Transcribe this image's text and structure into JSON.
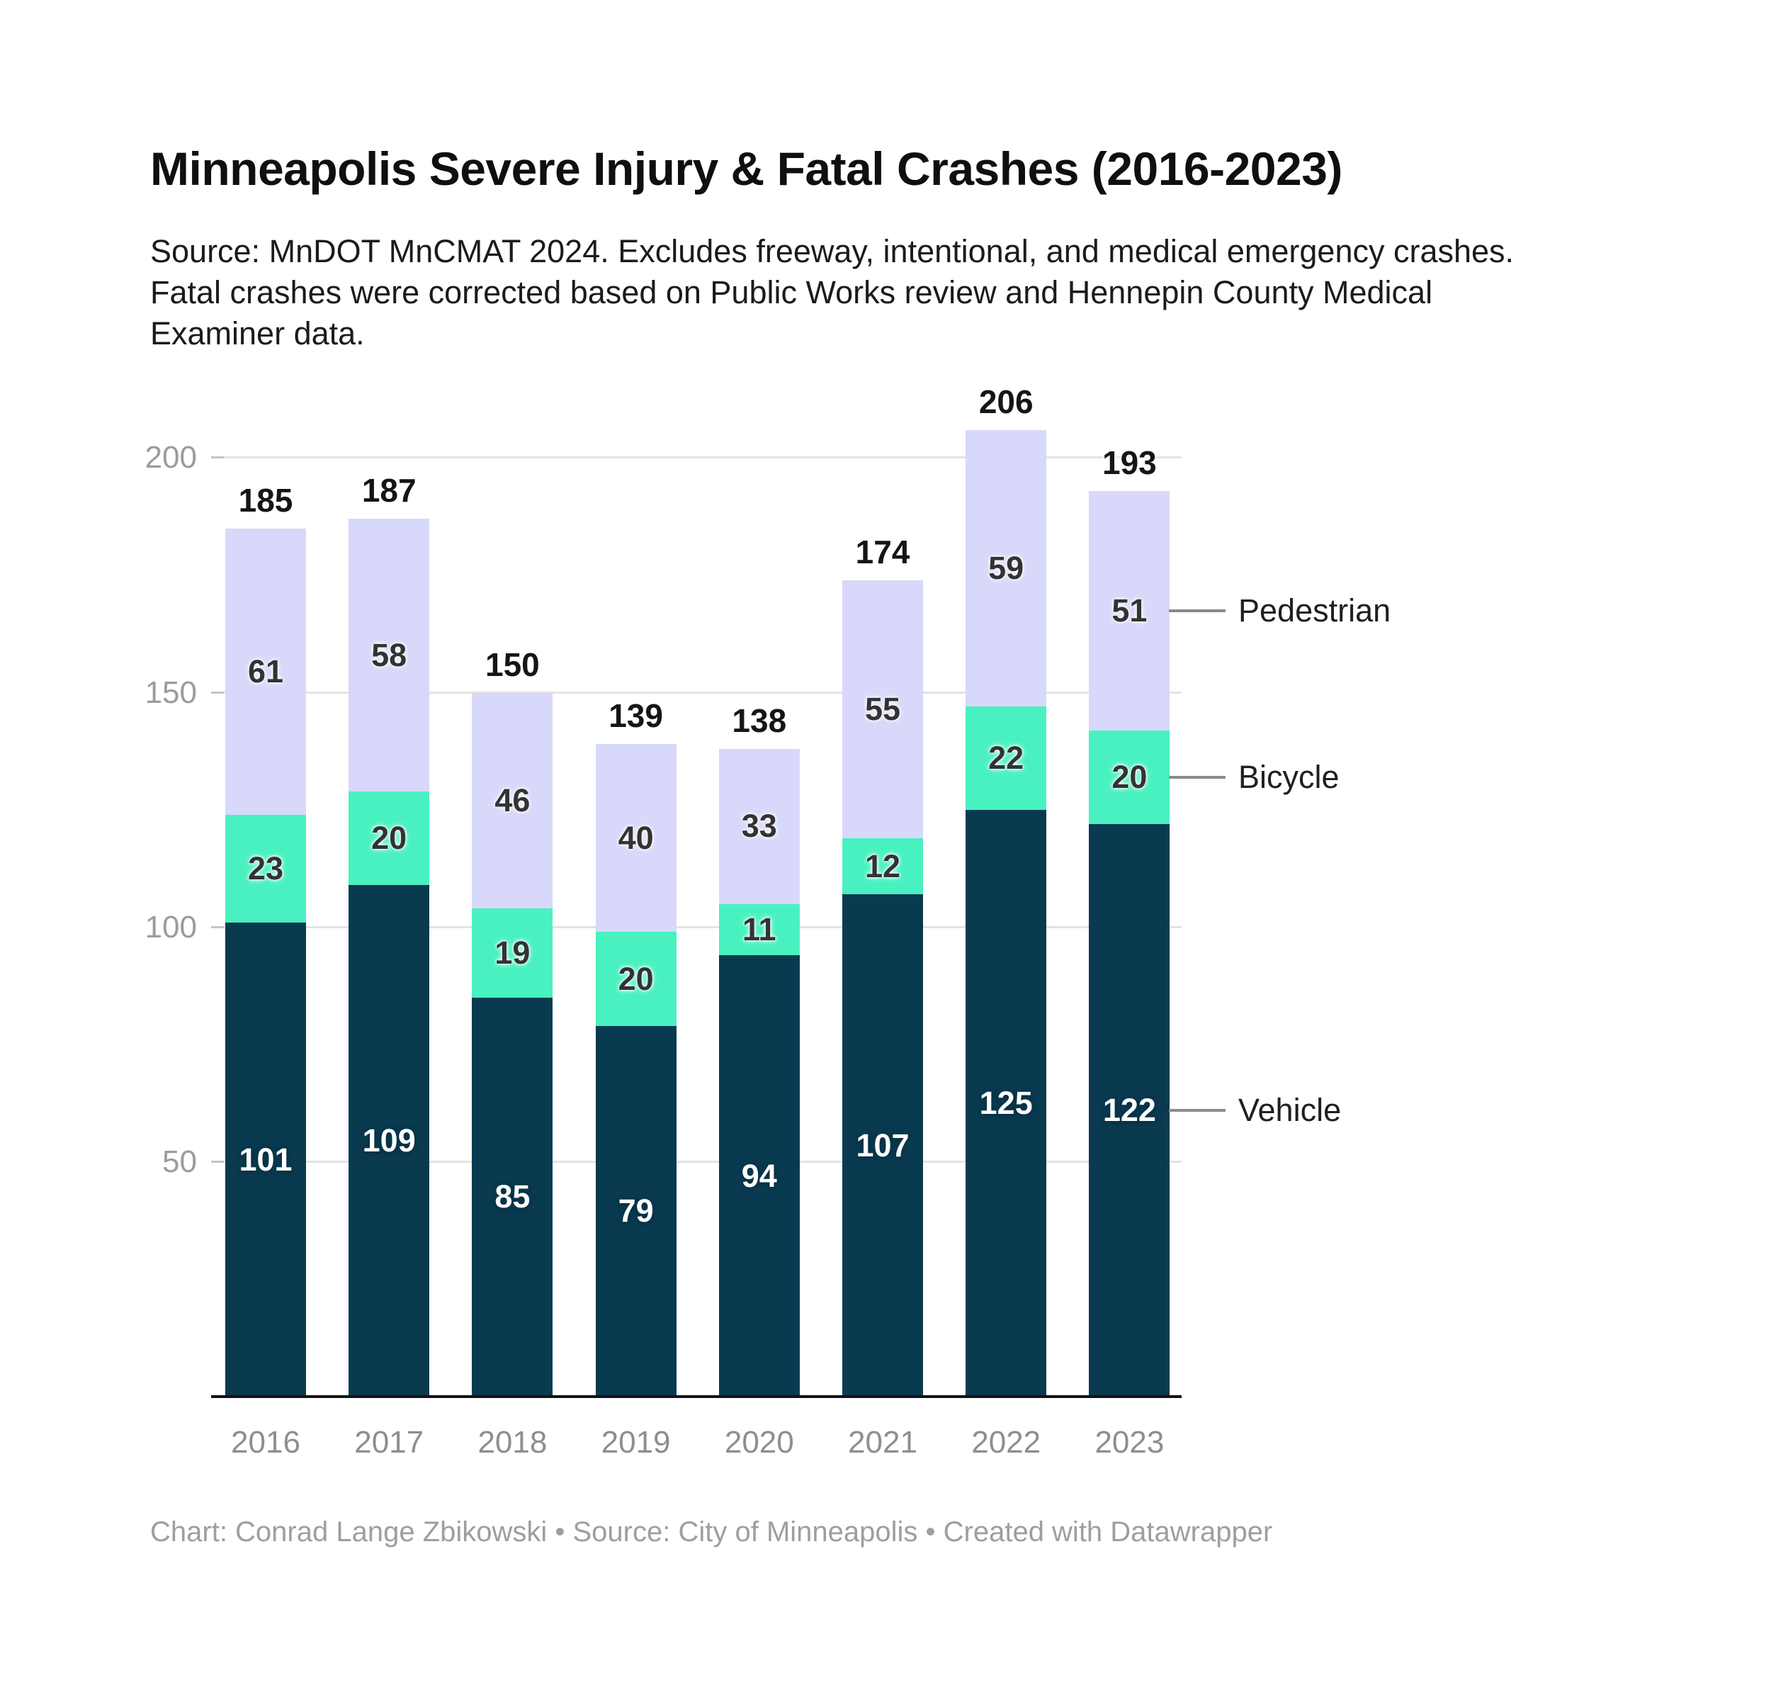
{
  "title": "Minneapolis Severe Injury & Fatal Crashes (2016-2023)",
  "description_lines": [
    "Source: MnDOT MnCMAT 2024. Excludes freeway, intentional, and medical emergency crashes.",
    "Fatal crashes were corrected based on Public Works review and Hennepin County Medical",
    "Examiner data."
  ],
  "footer": "Chart: Conrad Lange Zbikowski • Source: City of Minneapolis • Created with Datawrapper",
  "chart_data": {
    "type": "bar",
    "stacked": true,
    "title": "Minneapolis Severe Injury & Fatal Crashes (2016-2023)",
    "xlabel": "",
    "ylabel": "",
    "categories": [
      "2016",
      "2017",
      "2018",
      "2019",
      "2020",
      "2021",
      "2022",
      "2023"
    ],
    "series": [
      {
        "name": "Vehicle",
        "color": "#0A3A50",
        "label_color": "#FFFFFF",
        "values": [
          101,
          109,
          85,
          79,
          94,
          107,
          125,
          122
        ]
      },
      {
        "name": "Bicycle",
        "color": "#49F1C1",
        "label_color": "#333333",
        "values": [
          23,
          20,
          19,
          20,
          11,
          12,
          22,
          20
        ]
      },
      {
        "name": "Pedestrian",
        "color": "#D7D8FA",
        "label_color": "#333333",
        "values": [
          61,
          58,
          46,
          40,
          33,
          55,
          59,
          51
        ]
      }
    ],
    "totals": [
      185,
      187,
      150,
      139,
      138,
      174,
      206,
      193
    ],
    "ylim": [
      0,
      215
    ],
    "yticks": [
      50,
      100,
      150,
      200
    ],
    "grid": "horizontal",
    "legend_position": "right-of-last-bar",
    "legend_order": [
      "Pedestrian",
      "Bicycle",
      "Vehicle"
    ]
  },
  "colors": {
    "gridline": "#E3E3E3",
    "tick": "#C5C5C5",
    "baseline": "#141414",
    "axis_text": "#9C9C9C",
    "year_text": "#8E8E8E",
    "legend_text": "#1F1F1F",
    "connector": "#8A8A8A"
  }
}
